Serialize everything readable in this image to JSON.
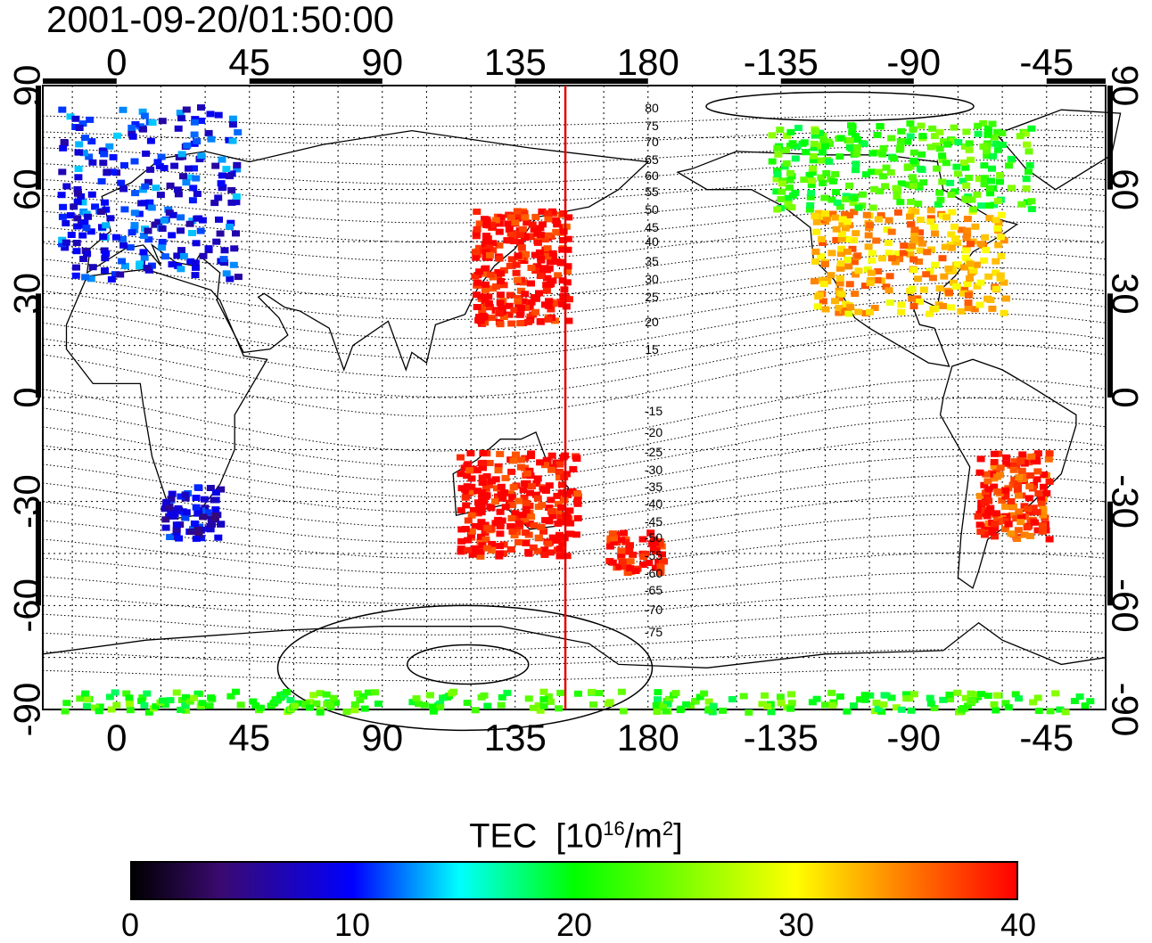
{
  "timestamp": "2001-09-20/01:50:00",
  "lon_ticks": [
    "0",
    "45",
    "90",
    "135",
    "180",
    "-135",
    "-90",
    "-45"
  ],
  "lat_ticks": [
    "90",
    "60",
    "30",
    "0",
    "-30",
    "-60",
    "-90"
  ],
  "contour_labels_north": [
    "80",
    "75",
    "70",
    "65",
    "60",
    "55",
    "50",
    "45",
    "40",
    "35",
    "30",
    "25",
    "20",
    "15"
  ],
  "contour_labels_south": [
    "-15",
    "-20",
    "-25",
    "-30",
    "-35",
    "-40",
    "-45",
    "-50",
    "-55",
    "-60",
    "-65",
    "-70",
    "-75"
  ],
  "colorbar": {
    "title": "TEC",
    "unit_prefix": "[10",
    "unit_exp": "16",
    "unit_mid": "/m",
    "unit_exp2": "2",
    "unit_suffix": "]",
    "ticks": [
      "0",
      "10",
      "20",
      "30",
      "40"
    ],
    "min": 0,
    "max": 40
  },
  "colors": {
    "terminator": "#e00000",
    "gradient": [
      "#000000",
      "#3a0a70",
      "#0000ff",
      "#00ffff",
      "#00ff00",
      "#ffff00",
      "#ff8000",
      "#ff0000"
    ]
  },
  "map": {
    "lon_min": -25,
    "lon_max": 335,
    "lat_min": -90,
    "lat_max": 90,
    "terminator_lon": 152
  },
  "tec_regions": [
    {
      "name": "europe",
      "lon": [
        -20,
        40
      ],
      "lat": [
        35,
        85
      ],
      "tec": 10
    },
    {
      "name": "japan",
      "lon": [
        120,
        152
      ],
      "lat": [
        22,
        55
      ],
      "tec": 40
    },
    {
      "name": "north-america",
      "lon": [
        235,
        300
      ],
      "lat": [
        25,
        55
      ],
      "tec": 33
    },
    {
      "name": "canada",
      "lon": [
        220,
        310
      ],
      "lat": [
        55,
        80
      ],
      "tec": 22
    },
    {
      "name": "australia",
      "lon": [
        115,
        155
      ],
      "lat": [
        -45,
        -15
      ],
      "tec": 40
    },
    {
      "name": "south-africa",
      "lon": [
        15,
        35
      ],
      "lat": [
        -40,
        -25
      ],
      "tec": 8
    },
    {
      "name": "antarctica",
      "lon": [
        -20,
        330
      ],
      "lat": [
        -90,
        -84
      ],
      "tec": 22
    },
    {
      "name": "nz",
      "lon": [
        165,
        185
      ],
      "lat": [
        -50,
        -38
      ],
      "tec": 40
    },
    {
      "name": "south-america",
      "lon": [
        290,
        315
      ],
      "lat": [
        -40,
        -15
      ],
      "tec": 38
    }
  ]
}
